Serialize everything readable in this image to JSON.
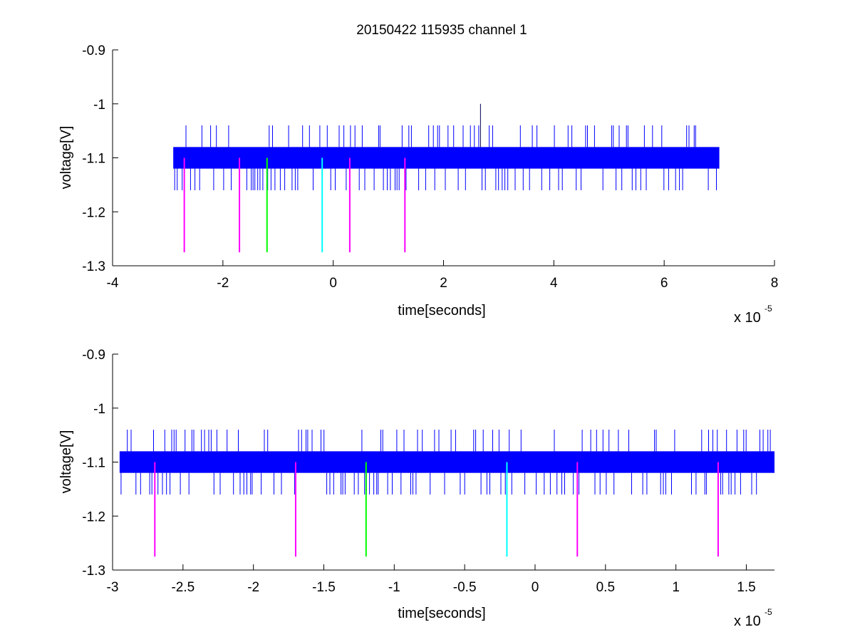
{
  "figure_title": "20150422 115935 channel 1",
  "colors": {
    "signal": "#0000ff",
    "magenta": "#ff00ff",
    "green": "#00ff00",
    "cyan": "#00ffff",
    "axis": "#000000"
  },
  "chart_data": [
    {
      "type": "line",
      "title": "20150422 115935 channel 1",
      "xlabel": "time[seconds]",
      "ylabel": "voltage[V]",
      "x_multiplier_label": "x 10",
      "x_multiplier_exponent": "-5",
      "xlim": [
        -4,
        8
      ],
      "ylim": [
        -1.3,
        -0.9
      ],
      "x_ticks": [
        -4,
        -2,
        0,
        2,
        4,
        6,
        8
      ],
      "x_tick_labels": [
        "-4",
        "-2",
        "0",
        "2",
        "4",
        "6",
        "8"
      ],
      "y_ticks": [
        -0.9,
        -1,
        -1.1,
        -1.2,
        -1.3
      ],
      "y_tick_labels": [
        "-0.9",
        "-1",
        "-1.1",
        "-1.2",
        "-1.3"
      ],
      "signal": {
        "x_range": [
          -2.9,
          7.0
        ],
        "band_low": -1.12,
        "band_high": -1.08,
        "spike_high": -1.04,
        "spike_low": -1.16,
        "peak": {
          "x": 2.67,
          "y": -1.0
        }
      },
      "markers": [
        {
          "x": -2.7,
          "color": "magenta",
          "y_top": -1.1,
          "y_bottom": -1.275
        },
        {
          "x": -1.7,
          "color": "magenta",
          "y_top": -1.1,
          "y_bottom": -1.275
        },
        {
          "x": -1.2,
          "color": "green",
          "y_top": -1.1,
          "y_bottom": -1.275
        },
        {
          "x": -0.2,
          "color": "cyan",
          "y_top": -1.1,
          "y_bottom": -1.275
        },
        {
          "x": 0.3,
          "color": "magenta",
          "y_top": -1.1,
          "y_bottom": -1.275
        },
        {
          "x": 1.3,
          "color": "magenta",
          "y_top": -1.1,
          "y_bottom": -1.275
        }
      ]
    },
    {
      "type": "line",
      "title": "",
      "xlabel": "time[seconds]",
      "ylabel": "voltage[V]",
      "x_multiplier_label": "x 10",
      "x_multiplier_exponent": "-5",
      "xlim": [
        -3.0,
        1.7
      ],
      "ylim": [
        -1.3,
        -0.9
      ],
      "x_ticks": [
        -3,
        -2.5,
        -2,
        -1.5,
        -1,
        -0.5,
        0,
        0.5,
        1,
        1.5
      ],
      "x_tick_labels": [
        "-3",
        "-2.5",
        "-2",
        "-1.5",
        "-1",
        "-0.5",
        "0",
        "0.5",
        "1",
        "1.5"
      ],
      "y_ticks": [
        -0.9,
        -1,
        -1.1,
        -1.2,
        -1.3
      ],
      "y_tick_labels": [
        "-0.9",
        "-1",
        "-1.1",
        "-1.2",
        "-1.3"
      ],
      "signal": {
        "x_range": [
          -2.95,
          1.7
        ],
        "band_low": -1.12,
        "band_high": -1.08,
        "spike_high": -1.04,
        "spike_low": -1.16
      },
      "markers": [
        {
          "x": -2.7,
          "color": "magenta",
          "y_top": -1.1,
          "y_bottom": -1.275
        },
        {
          "x": -1.7,
          "color": "magenta",
          "y_top": -1.1,
          "y_bottom": -1.275
        },
        {
          "x": -1.2,
          "color": "green",
          "y_top": -1.1,
          "y_bottom": -1.275
        },
        {
          "x": -0.2,
          "color": "cyan",
          "y_top": -1.1,
          "y_bottom": -1.275
        },
        {
          "x": 0.3,
          "color": "magenta",
          "y_top": -1.1,
          "y_bottom": -1.275
        },
        {
          "x": 1.3,
          "color": "magenta",
          "y_top": -1.1,
          "y_bottom": -1.275
        }
      ]
    }
  ]
}
